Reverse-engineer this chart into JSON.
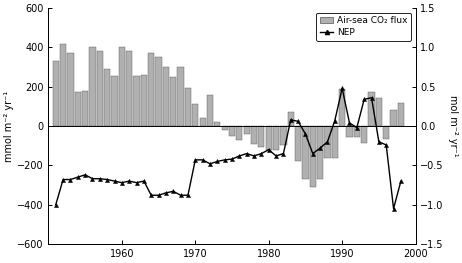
{
  "years": [
    1951,
    1952,
    1953,
    1954,
    1955,
    1956,
    1957,
    1958,
    1959,
    1960,
    1961,
    1962,
    1963,
    1964,
    1965,
    1966,
    1967,
    1968,
    1969,
    1970,
    1971,
    1972,
    1973,
    1974,
    1975,
    1976,
    1977,
    1978,
    1979,
    1980,
    1981,
    1982,
    1983,
    1984,
    1985,
    1986,
    1987,
    1988,
    1989,
    1990,
    1991,
    1992,
    1993,
    1994,
    1995,
    1996,
    1997,
    1998
  ],
  "bar_values": [
    330,
    420,
    370,
    175,
    180,
    400,
    380,
    290,
    255,
    400,
    380,
    255,
    260,
    370,
    350,
    300,
    250,
    300,
    195,
    110,
    40,
    160,
    20,
    -20,
    -50,
    -70,
    -40,
    -90,
    -105,
    -120,
    -120,
    -95,
    70,
    -180,
    -270,
    -310,
    -270,
    -160,
    -160,
    190,
    -55,
    -55,
    -85,
    175,
    145,
    -65,
    80,
    115
  ],
  "nep_values": [
    -1.0,
    -0.68,
    -0.68,
    -0.65,
    -0.62,
    -0.67,
    -0.67,
    -0.68,
    -0.7,
    -0.72,
    -0.7,
    -0.72,
    -0.7,
    -0.88,
    -0.88,
    -0.85,
    -0.83,
    -0.88,
    -0.88,
    -0.43,
    -0.43,
    -0.48,
    -0.45,
    -0.43,
    -0.42,
    -0.38,
    -0.35,
    -0.38,
    -0.35,
    -0.3,
    -0.38,
    -0.35,
    0.08,
    0.06,
    -0.1,
    -0.35,
    -0.28,
    -0.2,
    0.07,
    0.48,
    0.04,
    -0.02,
    0.34,
    0.36,
    -0.2,
    -0.24,
    -1.05,
    -0.7
  ],
  "bar_color": "#b0b0b0",
  "bar_edge_color": "#555555",
  "nep_color": "#000000",
  "ylim_left": [
    -600,
    600
  ],
  "ylim_right": [
    -1.5,
    1.5
  ],
  "ylabel_left": "mmol m⁻² yr⁻¹",
  "ylabel_right": "mol m⁻² yr⁻¹",
  "legend_bar_label": "Air-sea CO₂ flux",
  "legend_nep_label": "NEP",
  "background_color": "#ffffff",
  "xlim": [
    1950,
    2000
  ],
  "xticks": [
    1960,
    1970,
    1980,
    1990,
    2000
  ],
  "yticks_left": [
    -600,
    -400,
    -200,
    0,
    200,
    400,
    600
  ],
  "yticks_right": [
    -1.5,
    -1.0,
    -0.5,
    0.0,
    0.5,
    1.0,
    1.5
  ]
}
